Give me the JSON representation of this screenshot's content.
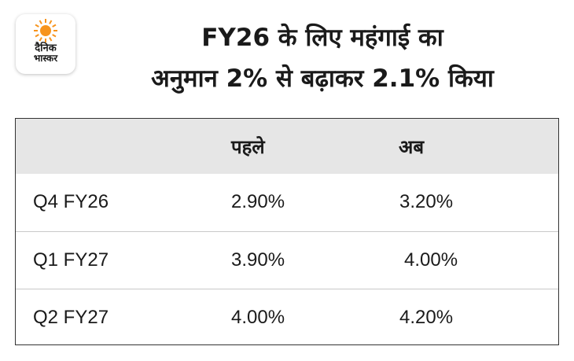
{
  "logo": {
    "line1": "दैनिक",
    "line2": "भास्कर",
    "sun_color": "#f7941d"
  },
  "title": {
    "line1": "FY26 के लिए महंगाई का",
    "line2": "अनुमान 2% से बढ़ाकर 2.1% किया"
  },
  "table": {
    "headers": [
      "",
      "पहले",
      "अब"
    ],
    "rows": [
      {
        "period": "Q4 FY26",
        "before": "2.90%",
        "after": "3.20%"
      },
      {
        "period": "Q1 FY27",
        "before": "3.90%",
        "after": "4.00%"
      },
      {
        "period": "Q2 FY27",
        "before": "4.00%",
        "after": "4.20%"
      }
    ]
  },
  "colors": {
    "header_bg": "#e6e6e6",
    "border": "#333333",
    "row_divider": "#c9c9c9"
  }
}
